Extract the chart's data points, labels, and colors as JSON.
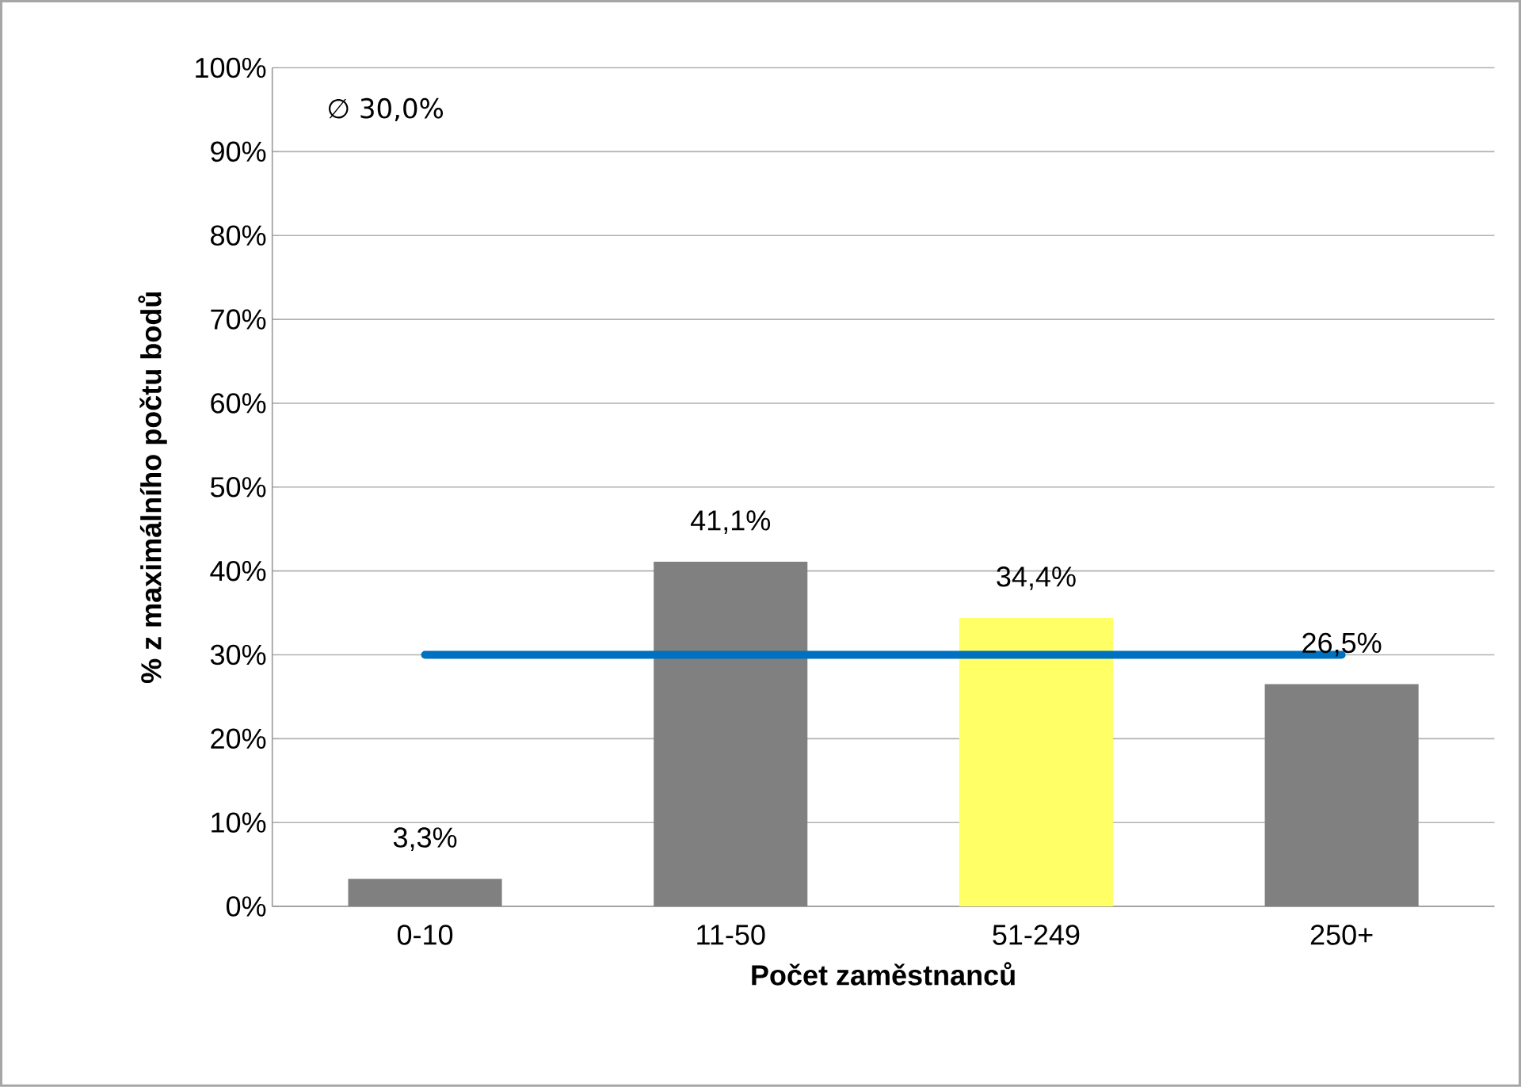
{
  "chart_data": {
    "type": "bar",
    "categories": [
      "0-10",
      "11-50",
      "51-249",
      "250+"
    ],
    "values": [
      3.3,
      41.1,
      34.4,
      26.5
    ],
    "colors": [
      "#808080",
      "#808080",
      "#ffff66",
      "#808080"
    ],
    "value_labels": [
      "3,3%",
      "41,1%",
      "34,4%",
      "26,5%"
    ],
    "ylim": [
      0,
      100
    ],
    "yticks": [
      {
        "value": 0,
        "label": "0%"
      },
      {
        "value": 10,
        "label": "10%"
      },
      {
        "value": 20,
        "label": "20%"
      },
      {
        "value": 30,
        "label": "30%"
      },
      {
        "value": 40,
        "label": "40%"
      },
      {
        "value": 50,
        "label": "50%"
      },
      {
        "value": 60,
        "label": "60%"
      },
      {
        "value": 70,
        "label": "70%"
      },
      {
        "value": 80,
        "label": "80%"
      },
      {
        "value": 90,
        "label": "90%"
      },
      {
        "value": 100,
        "label": "100%"
      }
    ],
    "ylabel": "% z maximálního počtu bodů",
    "xlabel": "Počet zaměstnanců",
    "ref_lines": [
      {
        "axis": "y",
        "value": 30,
        "color": "#0070c0",
        "line_style": "solid"
      }
    ],
    "annotations": [
      "∅   30,0%"
    ],
    "grid": "y"
  }
}
